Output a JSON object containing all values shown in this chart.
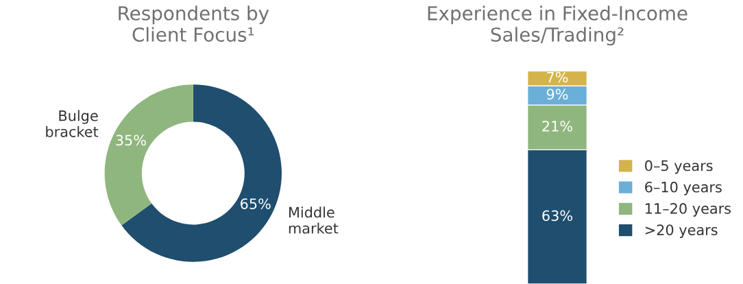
{
  "chart_data": [
    {
      "type": "donut",
      "title": "Respondents by\nClient Focus¹",
      "categories": [
        "Middle\nmarket",
        "Bulge\nbracket"
      ],
      "values": [
        65,
        35
      ],
      "colors": [
        "#1f4e6e",
        "#8fb67e"
      ],
      "value_labels": [
        "65%",
        "35%"
      ]
    },
    {
      "type": "bar",
      "title": "Experience in Fixed-Income\nSales/Trading²",
      "categories": [
        null
      ],
      "stacked": true,
      "legend": "right",
      "series": [
        {
          "name": ">20 years",
          "color": "#1f4e6e",
          "values": [
            63
          ],
          "value_labels": [
            "63%"
          ]
        },
        {
          "name": "11–20 years",
          "color": "#8fb67e",
          "values": [
            21
          ],
          "value_labels": [
            "21%"
          ]
        },
        {
          "name": "6–10 years",
          "color": "#6aafd6",
          "values": [
            9
          ],
          "value_labels": [
            "9%"
          ]
        },
        {
          "name": "0–5 years",
          "color": "#d4b44a",
          "values": [
            7
          ],
          "value_labels": [
            "7%"
          ]
        }
      ]
    }
  ]
}
